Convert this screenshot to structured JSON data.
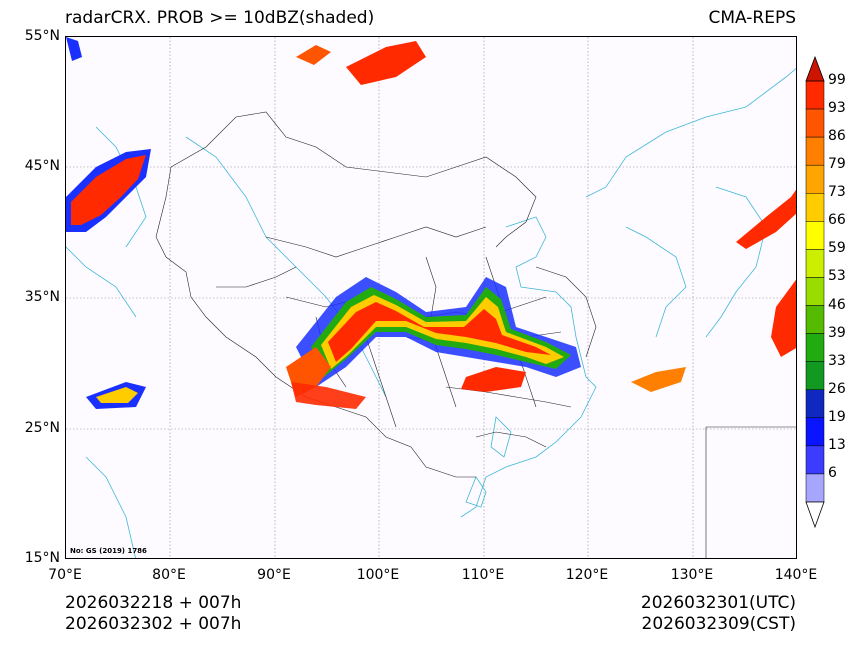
{
  "title_left": "radarCRX. PROB >= 10dBZ(shaded)",
  "title_right": "CMA-REPS",
  "latitude_labels": [
    "55°N",
    "45°N",
    "35°N",
    "25°N",
    "15°N"
  ],
  "longitude_labels": [
    "70°E",
    "80°E",
    "90°E",
    "100°E",
    "110°E",
    "120°E",
    "130°E",
    "140°E"
  ],
  "credit": "No: GS (2019) 1786",
  "footer_left": [
    "2026032218  +  007h",
    "2026032302  +  007h"
  ],
  "footer_right": [
    "2026032301(UTC)",
    "2026032309(CST)"
  ],
  "colorbar": {
    "labels": [
      "99",
      "93",
      "86",
      "79",
      "73",
      "66",
      "59",
      "53",
      "46",
      "39",
      "33",
      "26",
      "19",
      "13",
      "6"
    ],
    "colors": [
      "#cc1400",
      "#ff2a00",
      "#ff5500",
      "#ff8000",
      "#ffa500",
      "#ffcc00",
      "#ffff00",
      "#ccee00",
      "#99dd00",
      "#55bb00",
      "#22aa11",
      "#119922",
      "#0e28c0",
      "#0a14ff",
      "#3c3cff",
      "#a6a6ff"
    ]
  }
}
